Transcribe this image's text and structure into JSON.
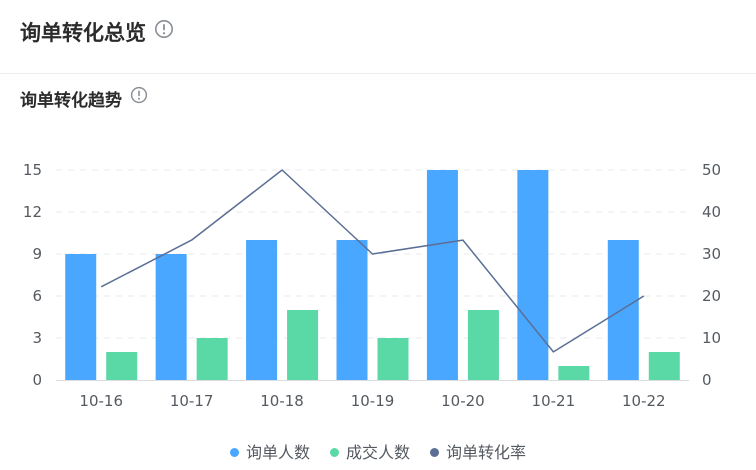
{
  "header": {
    "title": "询单转化总览"
  },
  "section": {
    "title": "询单转化趋势"
  },
  "icons": {
    "info": "info-circle-icon"
  },
  "colors": {
    "inquiry": "#4aa7ff",
    "deal": "#5ad8a6",
    "rate": "#5b6e96",
    "grid": "#e6e8eb",
    "axis": "#d9dde2"
  },
  "chart_data": {
    "type": "bar",
    "categories": [
      "10-16",
      "10-17",
      "10-18",
      "10-19",
      "10-20",
      "10-21",
      "10-22"
    ],
    "series": [
      {
        "name": "询单人数",
        "kind": "bar",
        "axis": "left",
        "values": [
          9,
          9,
          10,
          10,
          15,
          15,
          10
        ]
      },
      {
        "name": "成交人数",
        "kind": "bar",
        "axis": "left",
        "values": [
          2,
          3,
          5,
          3,
          5,
          1,
          2
        ]
      },
      {
        "name": "询单转化率",
        "kind": "line",
        "axis": "right",
        "values": [
          22.2,
          33.3,
          50,
          30,
          33.3,
          6.7,
          20
        ]
      }
    ],
    "y_left": {
      "ticks": [
        0,
        3,
        6,
        9,
        12,
        15
      ],
      "lim": [
        0,
        15
      ]
    },
    "y_right": {
      "ticks": [
        0,
        10,
        20,
        30,
        40,
        50
      ],
      "lim": [
        0,
        50
      ]
    },
    "grid": true,
    "legend_position": "bottom"
  }
}
